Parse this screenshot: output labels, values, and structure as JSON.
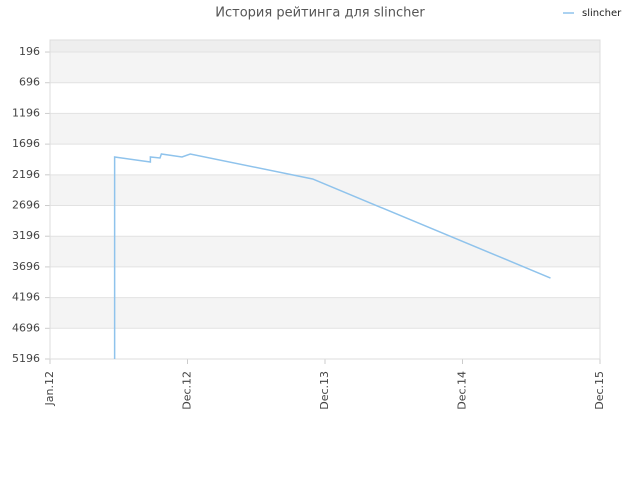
{
  "chart_data": {
    "type": "line",
    "title": "История рейтинга для slincher",
    "series": [
      {
        "name": "slincher",
        "color": "#8fc3ec",
        "x": [
          2012.47,
          2012.47,
          2012.73,
          2012.73,
          2012.8,
          2012.81,
          2012.96,
          2013.02,
          2013.91,
          2015.64
        ],
        "values": [
          5196,
          1906,
          1988,
          1906,
          1922,
          1857,
          1906,
          1857,
          2264,
          3877
        ]
      }
    ],
    "xlim": [
      2012,
      2016
    ],
    "xticks": [
      {
        "value": 2012,
        "label": "Jan.12"
      },
      {
        "value": 2013,
        "label": "Dec.12"
      },
      {
        "value": 2014,
        "label": "Dec.13"
      },
      {
        "value": 2015,
        "label": "Dec.14"
      },
      {
        "value": 2016,
        "label": "Dec.15"
      }
    ],
    "ylim": [
      5196,
      0
    ],
    "yticks": [
      196,
      696,
      1196,
      1696,
      2196,
      2696,
      3196,
      3696,
      4196,
      4696,
      5196
    ],
    "grid": true,
    "legend": "top-right"
  }
}
